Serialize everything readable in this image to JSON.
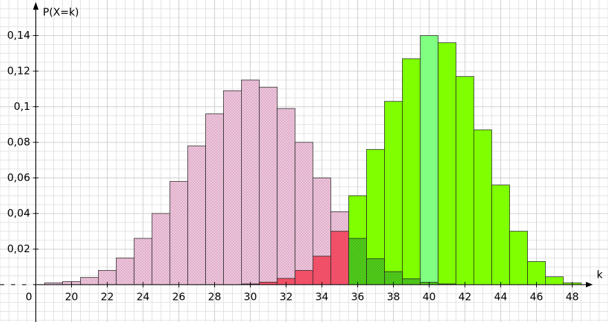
{
  "chart_data": {
    "type": "bar",
    "y_axis_label": "P(X=k)",
    "x_axis_label": "k",
    "origin_label": "0",
    "xlim": [
      16,
      50
    ],
    "ylim": [
      -0.021,
      0.16
    ],
    "y_axis_x": 18,
    "xticks": [
      20,
      22,
      24,
      26,
      28,
      30,
      32,
      34,
      36,
      38,
      40,
      42,
      44,
      46,
      48
    ],
    "yticks": [
      {
        "value": 0.02,
        "label": "0,02"
      },
      {
        "value": 0.04,
        "label": "0,04"
      },
      {
        "value": 0.06,
        "label": "0,06"
      },
      {
        "value": 0.08,
        "label": "0,08"
      },
      {
        "value": 0.1,
        "label": "0,1"
      },
      {
        "value": 0.12,
        "label": "0,12"
      },
      {
        "value": 0.14,
        "label": "0,14"
      }
    ],
    "grid": true,
    "minor_grid": {
      "x": 0.5,
      "y": 0.005
    },
    "highlight_x": 40,
    "highlight_color": "#80ff80",
    "series": [
      {
        "color": "#f6c8e2",
        "hatch": true,
        "x": [
          19,
          20,
          21,
          22,
          23,
          24,
          25,
          26,
          27,
          28,
          29,
          30,
          31,
          32,
          33,
          34,
          35
        ],
        "values": [
          0.001,
          0.0017,
          0.004,
          0.008,
          0.015,
          0.026,
          0.04,
          0.058,
          0.078,
          0.096,
          0.109,
          0.115,
          0.111,
          0.099,
          0.08,
          0.06,
          0.041
        ]
      },
      {
        "color": "#7fff00",
        "hatch": false,
        "x": [
          36,
          37,
          38,
          39,
          40,
          41,
          42,
          43,
          44,
          45,
          46,
          47,
          48
        ],
        "values": [
          0.05,
          0.076,
          0.103,
          0.127,
          0.14,
          0.136,
          0.117,
          0.087,
          0.056,
          0.03,
          0.013,
          0.0044,
          0.001
        ]
      },
      {
        "color": "#f05068",
        "hatch": false,
        "x": [
          30,
          31,
          32,
          33,
          34,
          35
        ],
        "values": [
          0.0004,
          0.0014,
          0.0035,
          0.008,
          0.016,
          0.03
        ]
      },
      {
        "color": "#52d21a",
        "hatch": true,
        "x": [
          36,
          37,
          38,
          39,
          40,
          41
        ],
        "values": [
          0.026,
          0.0146,
          0.0073,
          0.0033,
          0.0013,
          0.0004
        ]
      }
    ]
  }
}
